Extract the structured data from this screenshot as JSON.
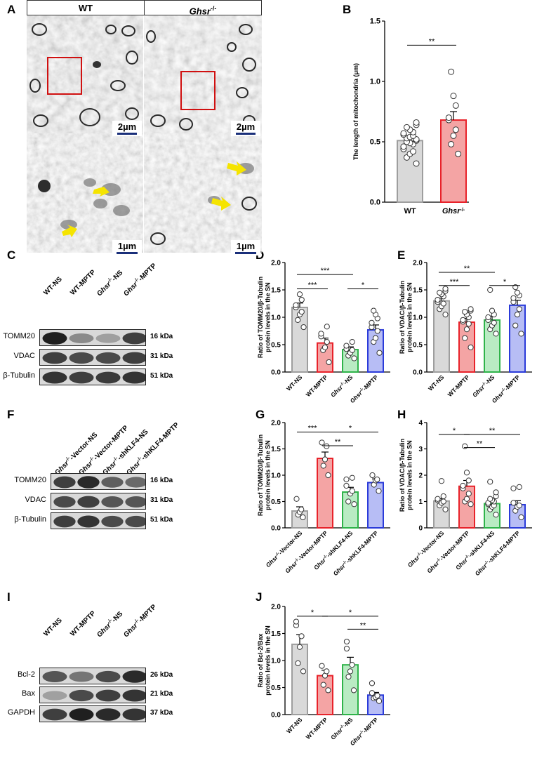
{
  "panel_labels": [
    "A",
    "B",
    "C",
    "D",
    "E",
    "F",
    "G",
    "H",
    "I",
    "J"
  ],
  "panel_a": {
    "col_wt": "WT",
    "col_ghsr_base": "Ghsr",
    "col_ghsr_sup": "-/-",
    "scale_top_left": "2µm",
    "scale_top_right": "2µm",
    "scale_bottom_left": "1µm",
    "scale_bottom_right": "1µm",
    "arrow_color": "#f5e400",
    "box_color": "#d01010"
  },
  "blot_c": {
    "lanes": [
      "WT-NS",
      "WT-MPTP",
      "Ghsr-/--NS",
      "Ghsr-/--MPTP"
    ],
    "bands": [
      {
        "name": "TOMM20",
        "kda": "16 kDa"
      },
      {
        "name": "VDAC",
        "kda": "31 kDa"
      },
      {
        "name": "β-Tubulin",
        "kda": "51 kDa"
      }
    ]
  },
  "blot_f": {
    "lanes": [
      "Ghsr-/--Vector-NS",
      "Ghsr-/--Vector-MPTP",
      "Ghsr-/--shKLF4-NS",
      "Ghsr-/--shKLF4-MPTP"
    ],
    "bands": [
      {
        "name": "TOMM20",
        "kda": "16 kDa"
      },
      {
        "name": "VDAC",
        "kda": "31 kDa"
      },
      {
        "name": "β-Tubulin",
        "kda": "51 kDa"
      }
    ]
  },
  "blot_i": {
    "lanes": [
      "WT-NS",
      "WT-MPTP",
      "Ghsr-/--NS",
      "Ghsr-/--MPTP"
    ],
    "bands": [
      {
        "name": "Bcl-2",
        "kda": "26 kDa"
      },
      {
        "name": "Bax",
        "kda": "21 kDa"
      },
      {
        "name": "GAPDH",
        "kda": "37 kDa"
      }
    ]
  },
  "chart_data": [
    {
      "id": "B",
      "type": "bar",
      "ylabel": "The length of mitochondria (μm)",
      "ylim": [
        0,
        1.5
      ],
      "yticks": [
        0.0,
        0.5,
        1.0,
        1.5
      ],
      "categories": [
        "WT",
        "Ghsr-/-"
      ],
      "values": [
        0.51,
        0.68
      ],
      "errors": [
        0.03,
        0.07
      ],
      "colors": [
        "#9e9e9e",
        "#e8222a"
      ],
      "fills": [
        "#d9d9d9",
        "#f4a4a4"
      ],
      "points": [
        [
          0.32,
          0.37,
          0.4,
          0.42,
          0.44,
          0.46,
          0.48,
          0.49,
          0.5,
          0.51,
          0.52,
          0.53,
          0.54,
          0.55,
          0.56,
          0.57,
          0.58,
          0.6,
          0.62,
          0.64,
          0.66
        ],
        [
          0.4,
          0.48,
          0.55,
          0.6,
          0.68,
          0.7,
          0.8,
          0.88,
          1.08
        ]
      ],
      "sig": [
        {
          "a": 0,
          "b": 1,
          "level": 1.3,
          "label": "**"
        }
      ]
    },
    {
      "id": "D",
      "type": "bar",
      "ylabel": "Ratio of TOMM20/β-Tubulin protein levels in the SN",
      "ylim": [
        0,
        2.0
      ],
      "yticks": [
        0.0,
        0.5,
        1.0,
        1.5,
        2.0
      ],
      "categories": [
        "WT-NS",
        "WT-MPTP",
        "Ghsr-/--NS",
        "Ghsr-/--MPTP"
      ],
      "values": [
        1.18,
        0.53,
        0.41,
        0.77
      ],
      "errors": [
        0.08,
        0.09,
        0.05,
        0.09
      ],
      "colors": [
        "#9e9e9e",
        "#e8222a",
        "#2fb34a",
        "#2b3bd9"
      ],
      "fills": [
        "#d9d9d9",
        "#f4a4a4",
        "#b9ebc3",
        "#b7bdf5"
      ],
      "points": [
        [
          0.82,
          0.95,
          1.05,
          1.1,
          1.18,
          1.22,
          1.32,
          1.42
        ],
        [
          0.18,
          0.4,
          0.45,
          0.55,
          0.65,
          0.7,
          0.83
        ],
        [
          0.25,
          0.3,
          0.35,
          0.4,
          0.42,
          0.48,
          0.55
        ],
        [
          0.35,
          0.55,
          0.62,
          0.75,
          0.82,
          0.9,
          0.98,
          1.05,
          1.12
        ]
      ],
      "sig": [
        {
          "a": 0,
          "b": 2,
          "level": 1.78,
          "label": "***"
        },
        {
          "a": 0,
          "b": 1,
          "level": 1.52,
          "label": "***"
        },
        {
          "a": 2,
          "b": 3,
          "level": 1.52,
          "label": "*"
        }
      ]
    },
    {
      "id": "E",
      "type": "bar",
      "ylabel": "Ratio of VDAC/β-Tubulin protein levels in the SN",
      "ylim": [
        0,
        2.0
      ],
      "yticks": [
        0.0,
        0.5,
        1.0,
        1.5,
        2.0
      ],
      "categories": [
        "WT-NS",
        "WT-MPTP",
        "Ghsr-/--NS",
        "Ghsr-/--MPTP"
      ],
      "values": [
        1.3,
        0.91,
        0.95,
        1.22
      ],
      "errors": [
        0.05,
        0.07,
        0.07,
        0.09
      ],
      "colors": [
        "#9e9e9e",
        "#e8222a",
        "#2fb34a",
        "#2b3bd9"
      ],
      "fills": [
        "#d9d9d9",
        "#f4a4a4",
        "#b9ebc3",
        "#b7bdf5"
      ],
      "points": [
        [
          1.05,
          1.15,
          1.2,
          1.25,
          1.28,
          1.32,
          1.38,
          1.42,
          1.45,
          1.48,
          1.52
        ],
        [
          0.45,
          0.62,
          0.78,
          0.88,
          0.92,
          0.95,
          1.0,
          1.05,
          1.1,
          1.12,
          1.15
        ],
        [
          0.7,
          0.78,
          0.85,
          0.9,
          0.95,
          1.0,
          1.05,
          1.12,
          1.5
        ],
        [
          0.7,
          0.85,
          1.05,
          1.15,
          1.28,
          1.35,
          1.4,
          1.45,
          1.55
        ]
      ],
      "sig": [
        {
          "a": 0,
          "b": 2,
          "level": 1.82,
          "label": "**"
        },
        {
          "a": 0,
          "b": 1,
          "level": 1.58,
          "label": "***"
        },
        {
          "a": 2,
          "b": 3,
          "level": 1.58,
          "label": "*"
        }
      ]
    },
    {
      "id": "G",
      "type": "bar",
      "ylabel": "Ratio of TOMM20/β-Tubulin protein levels in the SN",
      "ylim": [
        0,
        2.0
      ],
      "yticks": [
        0.0,
        0.5,
        1.0,
        1.5,
        2.0
      ],
      "categories": [
        "Ghsr-/--Vector-NS",
        "Ghsr-/--Vector-MPTP",
        "Ghsr-/--shKLF4-NS",
        "Ghsr-/--shKLF4-MPTP"
      ],
      "values": [
        0.32,
        1.32,
        0.68,
        0.86
      ],
      "errors": [
        0.08,
        0.12,
        0.09,
        0.07
      ],
      "colors": [
        "#9e9e9e",
        "#e8222a",
        "#2fb34a",
        "#2b3bd9"
      ],
      "fills": [
        "#d9d9d9",
        "#f4a4a4",
        "#b9ebc3",
        "#b7bdf5"
      ],
      "points": [
        [
          0.2,
          0.25,
          0.3,
          0.35,
          0.55
        ],
        [
          1.0,
          1.18,
          1.3,
          1.55,
          1.62
        ],
        [
          0.45,
          0.5,
          0.65,
          0.7,
          0.8,
          0.92,
          0.95
        ],
        [
          0.7,
          0.82,
          0.9,
          0.92,
          1.0
        ]
      ],
      "sig": [
        {
          "a": 0,
          "b": 1,
          "level": 1.82,
          "label": "***"
        },
        {
          "a": 1,
          "b": 3,
          "level": 1.82,
          "label": "*"
        },
        {
          "a": 1,
          "b": 2,
          "level": 1.56,
          "label": "**"
        }
      ]
    },
    {
      "id": "H",
      "type": "bar",
      "ylabel": "Ratio of VDAC/β-Tubulin protein levels in the SN",
      "ylim": [
        0,
        4
      ],
      "yticks": [
        0,
        1,
        2,
        3,
        4
      ],
      "categories": [
        "Ghsr-/--Vector-NS",
        "Ghsr-/--Vector-MPTP",
        "Ghsr-/--shKLF4-NS",
        "Ghsr-/--shKLF4-MPTP"
      ],
      "values": [
        1.02,
        1.58,
        0.92,
        0.88
      ],
      "errors": [
        0.1,
        0.22,
        0.08,
        0.15
      ],
      "colors": [
        "#9e9e9e",
        "#e8222a",
        "#2fb34a",
        "#2b3bd9"
      ],
      "fills": [
        "#d9d9d9",
        "#f4a4a4",
        "#b9ebc3",
        "#b7bdf5"
      ],
      "points": [
        [
          0.7,
          0.85,
          0.95,
          1.0,
          1.05,
          1.1,
          1.2,
          1.78
        ],
        [
          0.9,
          1.0,
          1.1,
          1.3,
          1.5,
          1.6,
          1.8,
          2.1,
          3.1
        ],
        [
          0.5,
          0.7,
          0.8,
          0.85,
          0.9,
          0.95,
          1.0,
          1.05,
          1.1,
          1.2,
          1.35,
          1.75
        ],
        [
          0.4,
          0.65,
          0.8,
          0.85,
          0.95,
          1.5,
          1.55
        ]
      ],
      "sig": [
        {
          "a": 0,
          "b": 1,
          "level": 3.55,
          "label": "*"
        },
        {
          "a": 1,
          "b": 3,
          "level": 3.55,
          "label": "**"
        },
        {
          "a": 1,
          "b": 2,
          "level": 3.05,
          "label": "**"
        }
      ]
    },
    {
      "id": "J",
      "type": "bar",
      "ylabel": "Ratio of Bcl-2/Bax protein levels in the SN",
      "ylim": [
        0,
        2.0
      ],
      "yticks": [
        0.0,
        0.5,
        1.0,
        1.5,
        2.0
      ],
      "categories": [
        "WT-NS",
        "WT-MPTP",
        "Ghsr-/--NS",
        "Ghsr-/--MPTP"
      ],
      "values": [
        1.3,
        0.72,
        0.92,
        0.36
      ],
      "errors": [
        0.18,
        0.1,
        0.14,
        0.05
      ],
      "colors": [
        "#9e9e9e",
        "#e8222a",
        "#2fb34a",
        "#2b3bd9"
      ],
      "fills": [
        "#d9d9d9",
        "#f4a4a4",
        "#b9ebc3",
        "#b7bdf5"
      ],
      "points": [
        [
          0.8,
          0.95,
          1.25,
          1.45,
          1.65,
          1.72
        ],
        [
          0.45,
          0.55,
          0.72,
          0.8,
          0.9
        ],
        [
          0.45,
          0.7,
          0.8,
          0.92,
          1.22,
          1.35
        ],
        [
          0.25,
          0.3,
          0.32,
          0.35,
          0.4,
          0.58
        ]
      ],
      "sig": [
        {
          "a": 0,
          "b": 1,
          "level": 1.82,
          "label": "*"
        },
        {
          "a": 1,
          "b": 3,
          "level": 1.82,
          "label": "*"
        },
        {
          "a": 2,
          "b": 3,
          "level": 1.58,
          "label": "**"
        }
      ]
    }
  ]
}
